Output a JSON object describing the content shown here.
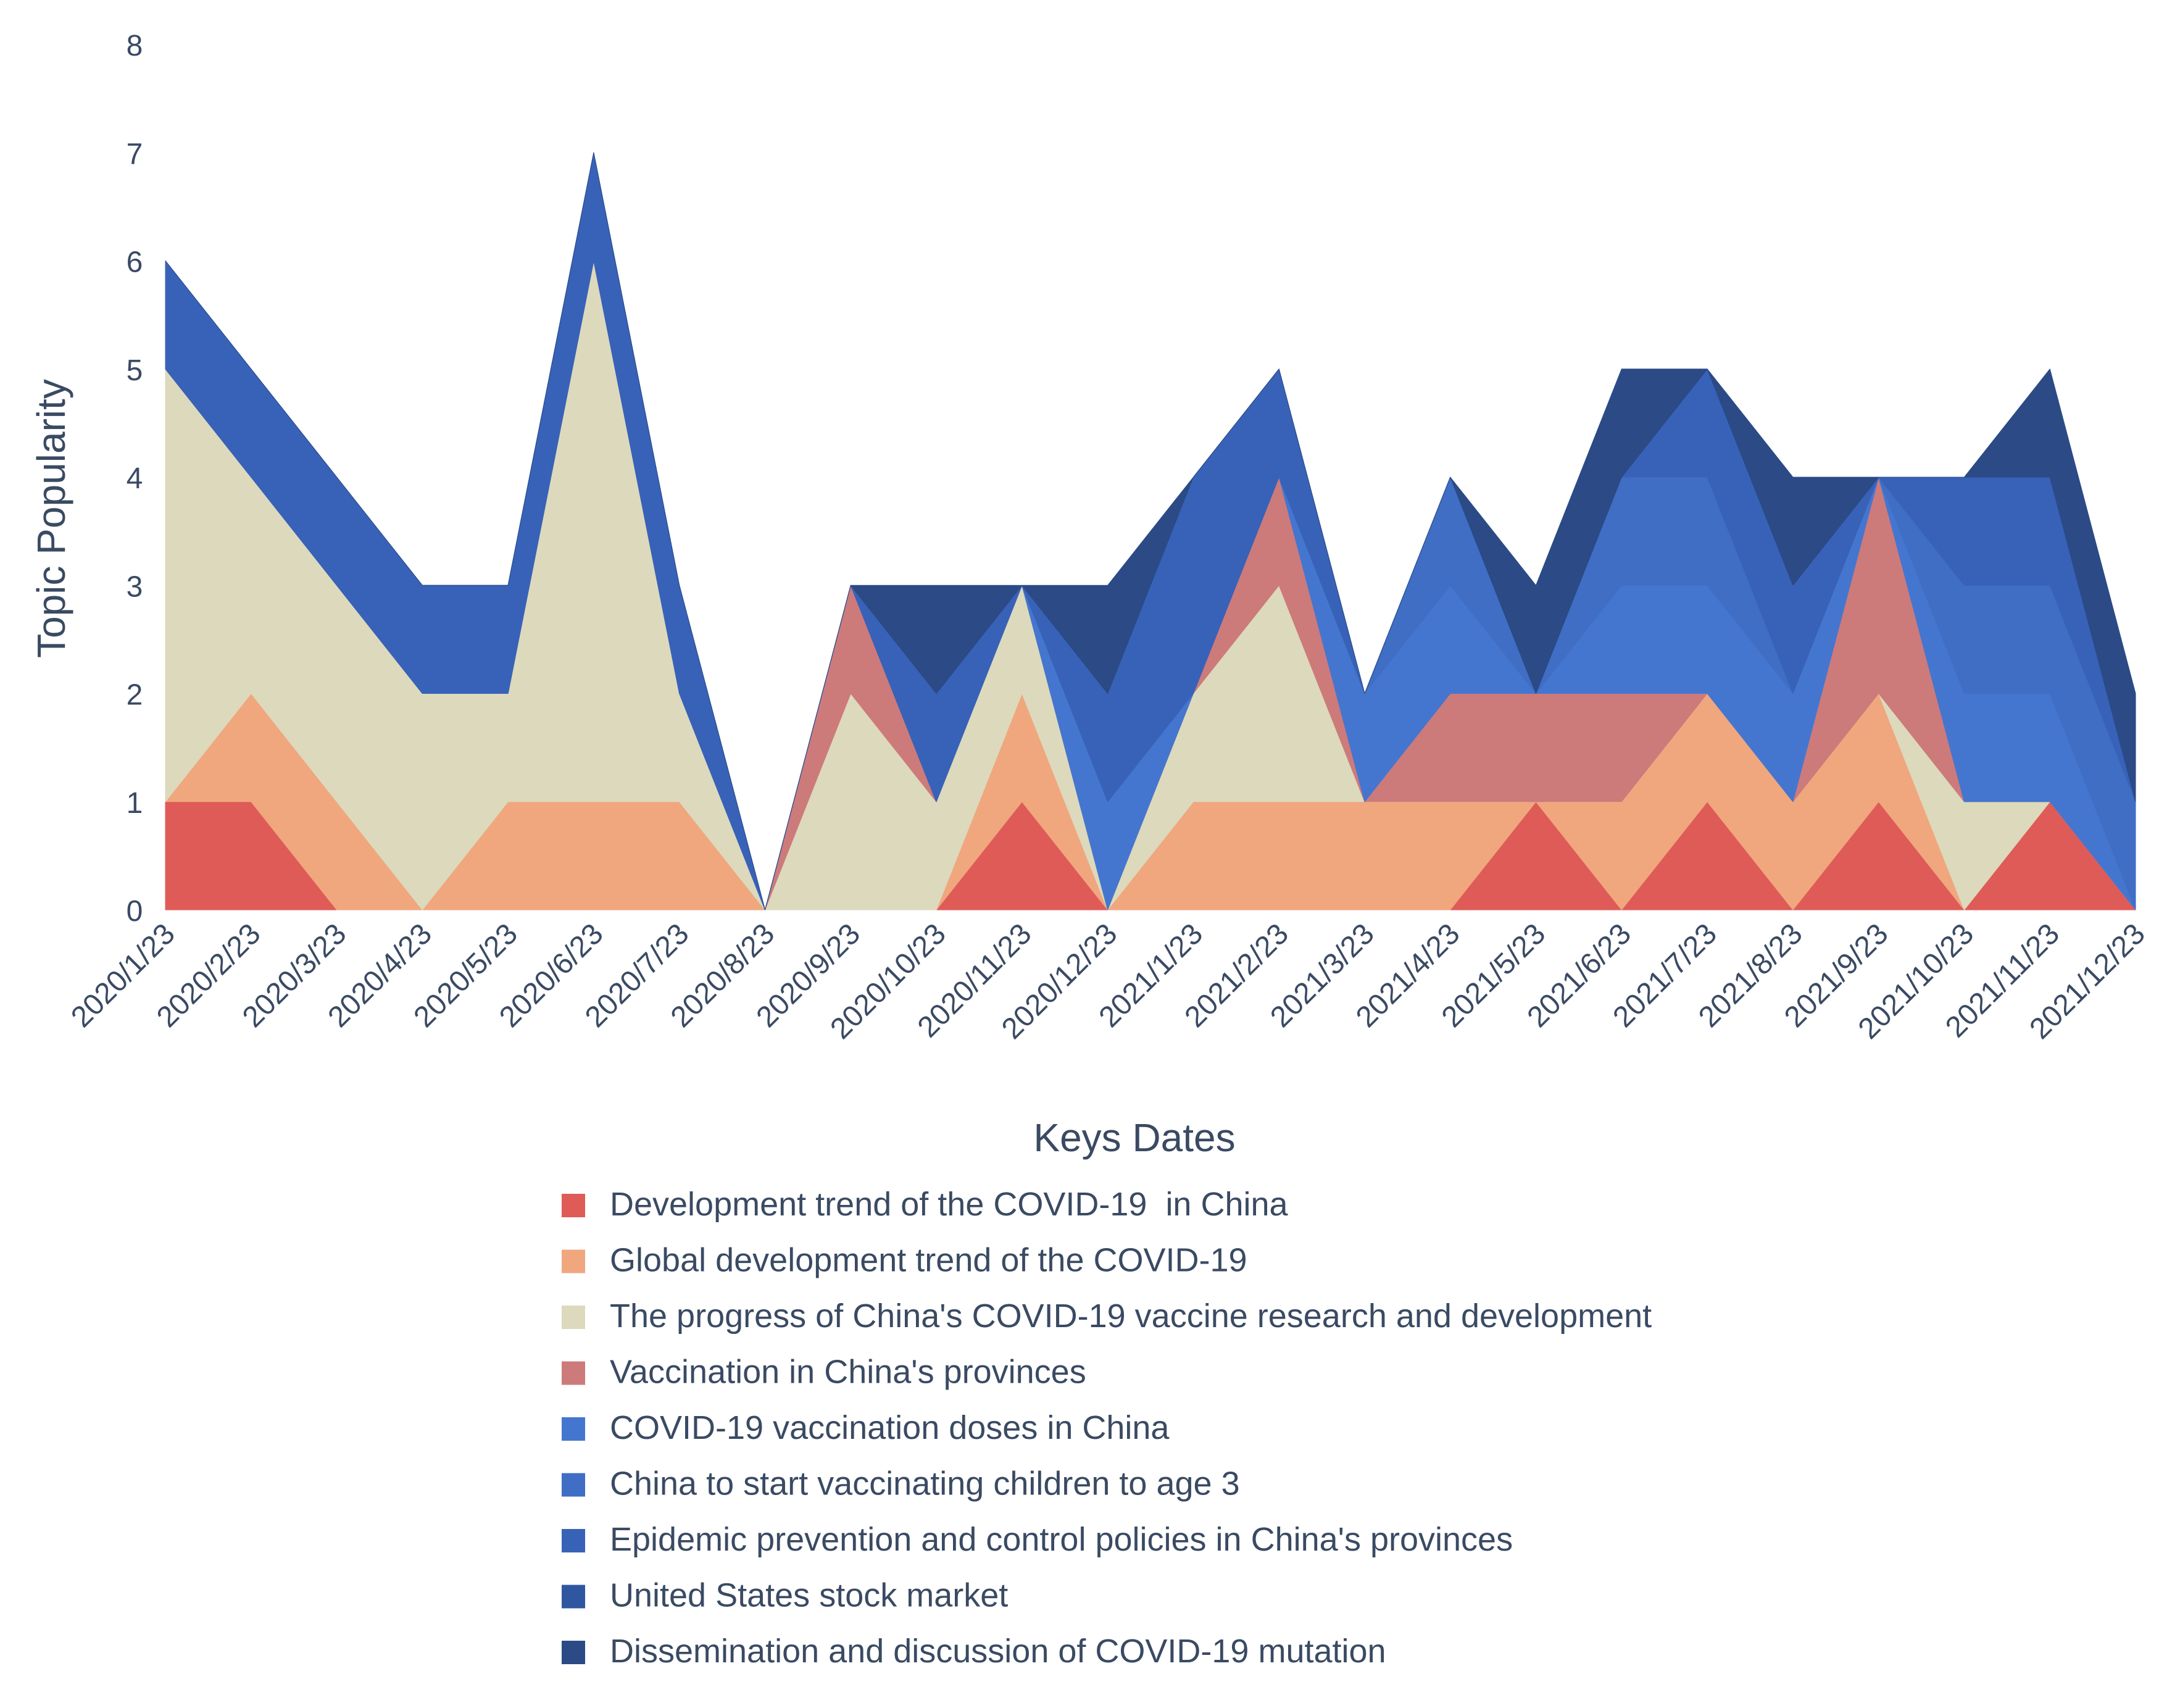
{
  "chart_data": {
    "type": "area",
    "stacked": true,
    "title": "",
    "xlabel": "Keys Dates",
    "ylabel": "Topic Popularity",
    "ylim": [
      0,
      8
    ],
    "yticks": [
      "0",
      "1",
      "2",
      "3",
      "4",
      "5",
      "6",
      "7",
      "8"
    ],
    "categories": [
      "2020/1/23",
      "2020/2/23",
      "2020/3/23",
      "2020/4/23",
      "2020/5/23",
      "2020/6/23",
      "2020/7/23",
      "2020/8/23",
      "2020/9/23",
      "2020/10/23",
      "2020/11/23",
      "2020/12/23",
      "2021/1/23",
      "2021/2/23",
      "2021/3/23",
      "2021/4/23",
      "2021/5/23",
      "2021/6/23",
      "2021/7/23",
      "2021/8/23",
      "2021/9/23",
      "2021/10/23",
      "2021/11/23",
      "2021/12/23"
    ],
    "grid": false,
    "legend_position": "bottom",
    "series": [
      {
        "name": "Development trend of the COVID-19  in China",
        "color": "#df5b57",
        "values": [
          1,
          1,
          0,
          0,
          0,
          0,
          0,
          0,
          0,
          0,
          1,
          0,
          0,
          0,
          0,
          0,
          1,
          0,
          1,
          0,
          1,
          0,
          1,
          0
        ]
      },
      {
        "name": "Global development trend of the COVID-19",
        "color": "#f0a77e",
        "values": [
          0,
          1,
          1,
          0,
          1,
          1,
          1,
          0,
          0,
          0,
          1,
          0,
          1,
          1,
          1,
          1,
          0,
          1,
          1,
          1,
          1,
          0,
          0,
          0
        ]
      },
      {
        "name": "The progress of China's COVID-19 vaccine research and development",
        "color": "#dcd9bd",
        "values": [
          4,
          2,
          2,
          2,
          1,
          5,
          1,
          0,
          2,
          1,
          1,
          0,
          1,
          2,
          0,
          0,
          0,
          0,
          0,
          0,
          0,
          1,
          0,
          0
        ]
      },
      {
        "name": "Vaccination in China's provinces",
        "color": "#cd7a7b",
        "values": [
          0,
          0,
          0,
          0,
          0,
          0,
          0,
          0,
          1,
          0,
          0,
          0,
          0,
          1,
          0,
          1,
          1,
          1,
          0,
          0,
          2,
          0,
          0,
          0
        ]
      },
      {
        "name": "COVID-19 vaccination doses in China",
        "color": "#4576cf",
        "values": [
          0,
          0,
          0,
          0,
          0,
          0,
          0,
          0,
          0,
          0,
          0,
          1,
          0,
          0,
          1,
          1,
          0,
          1,
          1,
          1,
          0,
          1,
          1,
          0
        ]
      },
      {
        "name": "China to start vaccinating children to age 3",
        "color": "#3f6ec4",
        "values": [
          0,
          0,
          0,
          0,
          0,
          0,
          0,
          0,
          0,
          0,
          0,
          0,
          0,
          0,
          0,
          1,
          0,
          1,
          1,
          0,
          0,
          1,
          1,
          1
        ]
      },
      {
        "name": "Epidemic prevention and control policies in China's provinces",
        "color": "#3862b8",
        "values": [
          1,
          1,
          1,
          1,
          1,
          1,
          1,
          0,
          0,
          1,
          0,
          1,
          2,
          1,
          0,
          0,
          0,
          0,
          1,
          1,
          0,
          1,
          1,
          0
        ]
      },
      {
        "name": "United States stock market",
        "color": "#2f579f",
        "values": [
          0,
          0,
          0,
          0,
          0,
          0,
          0,
          0,
          0,
          0,
          0,
          0,
          0,
          0,
          0,
          0,
          0,
          0,
          0,
          0,
          0,
          0,
          0,
          0
        ]
      },
      {
        "name": "Dissemination and discussion of COVID-19 mutation",
        "color": "#2b4a86",
        "values": [
          0,
          0,
          0,
          0,
          0,
          0,
          0,
          0,
          0,
          1,
          0,
          1,
          0,
          0,
          0,
          0,
          1,
          1,
          0,
          1,
          0,
          0,
          1,
          1
        ]
      }
    ]
  }
}
